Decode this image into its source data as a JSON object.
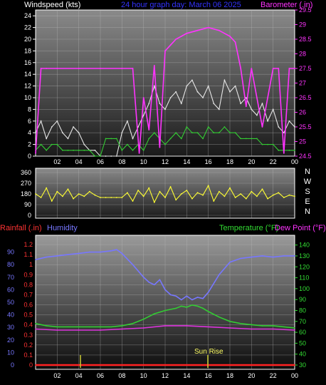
{
  "header": {
    "left_label": "Windspeed (kts)",
    "title": "24 hour graph day:  March 06 2025",
    "right_label": "Barometer (.in)"
  },
  "chart_data": [
    {
      "type": "line",
      "name": "wind-barometer",
      "xlabel": "",
      "ylabel": "Windspeed (kts)",
      "y2label": "Barometer (.in)",
      "x_ticks": [
        "02",
        "04",
        "06",
        "08",
        "10",
        "12",
        "14",
        "16",
        "18",
        "20",
        "22",
        "00"
      ],
      "ylim": [
        0,
        25
      ],
      "y_ticks": [
        0,
        2,
        4,
        6,
        8,
        10,
        12,
        14,
        16,
        18,
        20,
        22,
        24
      ],
      "y2lim": [
        24.5,
        29.5
      ],
      "y2_ticks": [
        "24.5",
        "25",
        "25.5",
        "26",
        "26.5",
        "27",
        "27.5",
        "28",
        "28.5",
        "29",
        "29.5"
      ],
      "grid": true,
      "series": [
        {
          "name": "Windspeed",
          "color": "#e6e6e6",
          "x": [
            0,
            0.5,
            1,
            1.5,
            2,
            2.5,
            3,
            3.5,
            4,
            4.5,
            5,
            5.5,
            6,
            6.5,
            7,
            7.5,
            8,
            8.5,
            9,
            9.5,
            10,
            10.5,
            11,
            11.5,
            12,
            12.5,
            13,
            13.5,
            14,
            14.5,
            15,
            15.5,
            16,
            16.5,
            17,
            17.5,
            18,
            18.5,
            19,
            19.5,
            20,
            20.5,
            21,
            21.5,
            22,
            22.5,
            23,
            23.5,
            24
          ],
          "values": [
            4,
            6,
            3,
            5,
            6,
            4,
            3,
            5,
            4,
            2,
            1,
            1,
            0,
            0,
            0,
            0,
            4,
            6,
            3,
            5,
            7,
            9,
            12,
            9,
            8,
            10,
            11,
            9,
            12,
            13,
            11,
            10,
            12,
            9,
            8,
            13,
            11,
            12,
            9,
            10,
            8,
            7,
            9,
            6,
            8,
            5,
            4,
            6,
            5
          ]
        },
        {
          "name": "Gust",
          "color": "#33cc33",
          "x": [
            0,
            0.5,
            1,
            1.5,
            2,
            2.5,
            3,
            3.5,
            4,
            4.5,
            5,
            5.5,
            6,
            6.5,
            7,
            7.5,
            8,
            8.5,
            9,
            9.5,
            10,
            10.5,
            11,
            11.5,
            12,
            12.5,
            13,
            13.5,
            14,
            14.5,
            15,
            15.5,
            16,
            16.5,
            17,
            17.5,
            18,
            18.5,
            19,
            19.5,
            20,
            20.5,
            21,
            21.5,
            22,
            22.5,
            23,
            23.5,
            24
          ],
          "values": [
            1,
            2,
            1,
            2,
            2,
            1,
            1,
            1,
            1,
            1,
            1,
            0,
            0,
            3,
            3,
            3,
            1,
            2,
            1,
            2,
            1,
            3,
            4,
            3,
            2,
            3,
            4,
            3,
            5,
            4,
            4,
            3,
            5,
            4,
            4,
            5,
            4,
            4,
            3,
            3,
            3,
            3,
            2,
            2,
            2,
            1,
            1,
            1,
            1
          ]
        },
        {
          "name": "Barometer",
          "color": "#ff33ff",
          "axis": "right",
          "x": [
            0,
            0.5,
            1,
            2,
            4,
            6,
            8,
            9,
            9.6,
            10,
            10.5,
            11,
            11.5,
            12,
            12.5,
            13,
            14,
            15,
            16,
            17,
            18,
            18.5,
            19,
            19.5,
            20,
            21,
            22,
            22.5,
            23,
            23.5,
            24
          ],
          "values": [
            24.6,
            27.5,
            27.5,
            27.5,
            27.5,
            27.5,
            27.5,
            27.5,
            24.6,
            26.5,
            25.4,
            27.6,
            24.8,
            28.1,
            28.3,
            28.5,
            28.7,
            28.8,
            28.9,
            28.8,
            28.6,
            28.4,
            27.5,
            26.2,
            27.5,
            25.5,
            27.5,
            27.5,
            24.6,
            27.5,
            27.5
          ]
        }
      ]
    },
    {
      "type": "line",
      "name": "wind-direction",
      "y_ticks": [
        0,
        90,
        180,
        270,
        360
      ],
      "ylim": [
        0,
        360
      ],
      "y2_ticks": [
        "N",
        "W",
        "S",
        "E",
        "N"
      ],
      "grid": true,
      "series": [
        {
          "name": "Wind Direction",
          "color": "#ffff33",
          "x": [
            0,
            0.5,
            1,
            1.5,
            2,
            2.5,
            3,
            3.5,
            4,
            4.5,
            5,
            5.5,
            6,
            6.5,
            7,
            7.5,
            8,
            8.5,
            9,
            9.5,
            10,
            10.5,
            11,
            11.5,
            12,
            12.5,
            13,
            13.5,
            14,
            14.5,
            15,
            15.5,
            16,
            16.5,
            17,
            17.5,
            18,
            18.5,
            19,
            19.5,
            20,
            20.5,
            21,
            21.5,
            22,
            22.5,
            23,
            23.5,
            24
          ],
          "values": [
            180,
            150,
            230,
            120,
            200,
            160,
            220,
            140,
            180,
            160,
            200,
            170,
            150,
            150,
            150,
            150,
            150,
            190,
            120,
            210,
            160,
            230,
            110,
            200,
            150,
            240,
            130,
            180,
            210,
            140,
            190,
            170,
            250,
            120,
            200,
            160,
            230,
            150,
            180,
            140,
            200,
            160,
            220,
            140,
            170,
            190,
            150,
            170,
            160
          ]
        }
      ]
    },
    {
      "type": "line",
      "name": "rain-humidity-temperature",
      "labels": {
        "rainfall": "Rainfall (.in)",
        "humidity": "Humidity",
        "temperature": "Temperature (°F)",
        "dewpoint": "Dew Point (°F)"
      },
      "x_ticks": [
        "02",
        "04",
        "06",
        "08",
        "10",
        "12",
        "14",
        "16",
        "18",
        "20",
        "22",
        "00"
      ],
      "humidity_ticks": [
        0,
        10,
        20,
        30,
        40,
        50,
        60,
        70,
        80,
        90
      ],
      "rain_ticks": [
        "0",
        "0.1",
        "0.2",
        "0.3",
        "0.4",
        "0.5",
        "0.6",
        "0.7",
        "0.8",
        "0.9",
        "1",
        "1.1",
        "1.2"
      ],
      "temp_ticks": [
        30,
        40,
        50,
        60,
        70,
        80,
        90,
        100,
        110,
        120,
        130,
        140
      ],
      "temp_ylim": [
        30,
        145
      ],
      "humidity_ylim": [
        0,
        100
      ],
      "annotation": "Sun Rise",
      "grid": true,
      "series": [
        {
          "name": "Humidity",
          "color": "#7777ff",
          "axis": "humidity",
          "x": [
            0,
            1,
            2,
            3,
            4,
            5,
            6,
            7,
            7.5,
            8,
            9,
            10,
            10.5,
            11,
            11.5,
            12,
            12.5,
            13,
            13.5,
            14,
            14.5,
            15,
            15.5,
            16,
            17,
            18,
            19,
            20,
            21,
            22,
            23,
            24
          ],
          "values": [
            84,
            86,
            87,
            88,
            89,
            90,
            90,
            91,
            92,
            89,
            80,
            70,
            66,
            64,
            68,
            60,
            56,
            55,
            52,
            55,
            52,
            54,
            53,
            58,
            72,
            82,
            85,
            86,
            87,
            86,
            87,
            87
          ]
        },
        {
          "name": "Temperature",
          "color": "#33cc33",
          "axis": "temp",
          "x": [
            0,
            1,
            2,
            3,
            4,
            5,
            6,
            7,
            8,
            9,
            10,
            11,
            12,
            13,
            13.5,
            14,
            14.5,
            15,
            15.5,
            16,
            17,
            18,
            19,
            20,
            21,
            22,
            23,
            24
          ],
          "values": [
            68,
            66,
            65,
            65,
            65,
            65,
            65,
            65,
            66,
            68,
            72,
            77,
            80,
            82,
            84,
            83,
            85,
            84,
            82,
            79,
            74,
            70,
            68,
            67,
            66,
            66,
            65,
            64
          ]
        },
        {
          "name": "Dew Point",
          "color": "#dd33dd",
          "axis": "temp",
          "x": [
            0,
            2,
            4,
            6,
            8,
            10,
            12,
            14,
            16,
            18,
            20,
            22,
            24
          ],
          "values": [
            63,
            62,
            62,
            62,
            63,
            64,
            66,
            66,
            65,
            64,
            63,
            63,
            62
          ]
        },
        {
          "name": "Rainfall",
          "color": "#ff2222",
          "axis": "rain",
          "x": [
            0,
            24
          ],
          "values": [
            0,
            0
          ]
        }
      ]
    }
  ],
  "compass": [
    "N",
    "W",
    "S",
    "E",
    "N"
  ]
}
